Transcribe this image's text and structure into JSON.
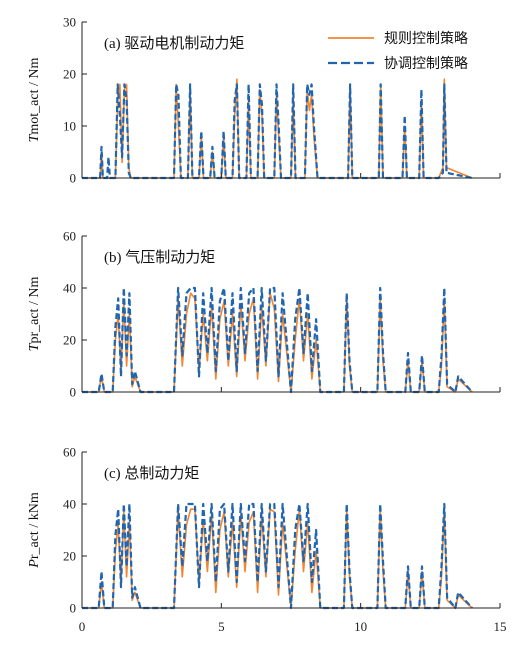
{
  "chart_data": [
    {
      "type": "line",
      "title": "(a) 驱动电机制动力矩",
      "ylabel_italic": "T",
      "ylabel_rest": "mot_act / Nm",
      "ylim": [
        0,
        30
      ],
      "yticks": [
        "0",
        "10",
        "20",
        "30"
      ],
      "xlim": [
        0,
        15
      ],
      "legend": [
        "规则控制策略",
        "协调控制策略"
      ],
      "legend_position": "top-right",
      "series": [
        {
          "name": "规则控制策略",
          "color": "#F28530",
          "style": "solid",
          "x": [
            0.0,
            0.65,
            0.7,
            0.75,
            1.2,
            1.28,
            1.36,
            1.44,
            1.52,
            1.6,
            1.68,
            1.75,
            3.3,
            3.38,
            3.46,
            3.55,
            3.8,
            3.88,
            3.96,
            4.2,
            4.28,
            4.36,
            4.6,
            4.68,
            4.76,
            5.0,
            5.08,
            5.16,
            5.4,
            5.48,
            5.56,
            5.64,
            5.9,
            5.98,
            6.06,
            6.3,
            6.38,
            6.46,
            6.54,
            6.9,
            6.98,
            7.06,
            7.14,
            7.5,
            7.58,
            7.66,
            8.0,
            8.08,
            8.16,
            8.24,
            8.32,
            8.45,
            9.55,
            9.62,
            9.7,
            10.65,
            10.72,
            10.8,
            11.5,
            11.58,
            11.66,
            12.1,
            12.18,
            12.26,
            12.8,
            12.95,
            13.0,
            13.08,
            14.0
          ],
          "y": [
            0,
            0,
            5,
            0,
            0,
            15,
            18,
            3,
            17,
            18,
            2,
            0,
            0,
            18,
            10,
            0,
            0,
            17,
            0,
            0,
            8,
            0,
            0,
            5,
            0,
            0,
            8,
            0,
            0,
            12,
            19,
            0,
            0,
            15,
            0,
            0,
            17,
            12,
            0,
            0,
            16,
            8,
            0,
            0,
            15,
            0,
            0,
            17,
            13,
            16,
            8,
            0,
            0,
            18,
            0,
            0,
            18,
            0,
            0,
            10,
            0,
            0,
            15,
            0,
            0,
            2,
            19,
            2,
            0
          ]
        },
        {
          "name": "协调控制策略",
          "color": "#2065B0",
          "style": "dashed",
          "x": [
            0.0,
            0.65,
            0.7,
            0.75,
            0.9,
            0.95,
            1.0,
            1.2,
            1.28,
            1.36,
            1.44,
            1.52,
            1.6,
            1.68,
            1.75,
            3.3,
            3.38,
            3.46,
            3.55,
            3.8,
            3.88,
            3.96,
            4.2,
            4.28,
            4.36,
            4.6,
            4.68,
            4.76,
            5.0,
            5.08,
            5.16,
            5.4,
            5.48,
            5.56,
            5.64,
            5.9,
            5.98,
            6.06,
            6.3,
            6.38,
            6.46,
            6.54,
            6.9,
            6.98,
            7.06,
            7.14,
            7.5,
            7.58,
            7.66,
            8.0,
            8.08,
            8.16,
            8.24,
            8.32,
            8.45,
            9.55,
            9.62,
            9.7,
            10.65,
            10.72,
            10.8,
            11.5,
            11.58,
            11.66,
            12.1,
            12.18,
            12.26,
            12.8,
            12.95,
            13.0,
            13.08,
            14.0
          ],
          "y": [
            0,
            0,
            6,
            0,
            0,
            4,
            0,
            0,
            18,
            12,
            4,
            18,
            15,
            1,
            0,
            0,
            18,
            16,
            0,
            0,
            18,
            0,
            0,
            9,
            0,
            0,
            6,
            0,
            0,
            9,
            0,
            0,
            15,
            18,
            0,
            0,
            18,
            0,
            0,
            18,
            14,
            0,
            0,
            18,
            10,
            0,
            0,
            18,
            0,
            0,
            18,
            16,
            18,
            10,
            0,
            0,
            18,
            0,
            0,
            18,
            0,
            0,
            12,
            0,
            0,
            17,
            0,
            0,
            1,
            18,
            1,
            0
          ]
        }
      ]
    },
    {
      "type": "line",
      "title": "(b) 气压制动力矩",
      "ylabel_italic": "T",
      "ylabel_rest": "pr_act / Nm",
      "ylim": [
        0,
        60
      ],
      "yticks": [
        "0",
        "20",
        "40",
        "60"
      ],
      "xlim": [
        0,
        15
      ],
      "series": [
        {
          "name": "规则控制策略",
          "color": "#F28530",
          "style": "solid",
          "x": [
            0.0,
            0.6,
            0.7,
            0.8,
            1.1,
            1.2,
            1.3,
            1.4,
            1.5,
            1.6,
            1.7,
            1.8,
            1.9,
            2.1,
            3.3,
            3.45,
            3.6,
            3.75,
            3.9,
            4.05,
            4.2,
            4.35,
            4.5,
            4.65,
            4.8,
            4.95,
            5.1,
            5.25,
            5.4,
            5.55,
            5.7,
            5.85,
            6.0,
            6.15,
            6.3,
            6.45,
            6.6,
            6.75,
            6.9,
            7.05,
            7.2,
            7.5,
            7.65,
            7.8,
            7.95,
            8.1,
            8.25,
            8.4,
            8.55,
            9.4,
            9.5,
            9.6,
            9.7,
            10.6,
            10.7,
            10.8,
            10.9,
            11.6,
            11.7,
            11.8,
            12.1,
            12.2,
            12.3,
            12.8,
            12.9,
            13.0,
            13.1,
            13.4,
            13.5,
            14.0
          ],
          "y": [
            0,
            0,
            6,
            0,
            0,
            20,
            30,
            8,
            35,
            10,
            30,
            2,
            6,
            0,
            0,
            36,
            10,
            30,
            38,
            36,
            8,
            30,
            12,
            33,
            5,
            28,
            35,
            10,
            30,
            6,
            34,
            12,
            30,
            36,
            5,
            33,
            10,
            38,
            32,
            4,
            30,
            0,
            20,
            36,
            12,
            30,
            5,
            20,
            0,
            0,
            36,
            10,
            0,
            0,
            36,
            12,
            0,
            0,
            12,
            0,
            0,
            12,
            0,
            0,
            10,
            36,
            2,
            0,
            5,
            0
          ]
        },
        {
          "name": "协调控制策略",
          "color": "#2065B0",
          "style": "dashed",
          "x": [
            0.0,
            0.6,
            0.7,
            0.8,
            1.1,
            1.2,
            1.3,
            1.4,
            1.5,
            1.6,
            1.7,
            1.8,
            1.9,
            2.1,
            3.3,
            3.45,
            3.6,
            3.75,
            3.9,
            4.05,
            4.2,
            4.35,
            4.5,
            4.65,
            4.8,
            4.95,
            5.1,
            5.25,
            5.4,
            5.55,
            5.7,
            5.85,
            6.0,
            6.15,
            6.3,
            6.45,
            6.6,
            6.75,
            6.9,
            7.05,
            7.2,
            7.5,
            7.65,
            7.8,
            7.95,
            8.1,
            8.25,
            8.4,
            8.55,
            9.4,
            9.5,
            9.6,
            9.7,
            10.6,
            10.7,
            10.8,
            10.9,
            11.6,
            11.7,
            11.8,
            12.1,
            12.2,
            12.3,
            12.8,
            12.9,
            13.0,
            13.1,
            13.4,
            13.5,
            14.0
          ],
          "y": [
            0,
            0,
            7,
            0,
            0,
            25,
            36,
            6,
            40,
            14,
            38,
            3,
            8,
            0,
            0,
            40,
            14,
            38,
            40,
            40,
            6,
            38,
            15,
            40,
            8,
            35,
            40,
            12,
            38,
            8,
            40,
            15,
            38,
            40,
            8,
            40,
            12,
            40,
            40,
            6,
            38,
            0,
            28,
            40,
            15,
            38,
            8,
            28,
            0,
            0,
            38,
            12,
            0,
            0,
            40,
            15,
            0,
            0,
            15,
            0,
            0,
            14,
            0,
            0,
            14,
            40,
            3,
            0,
            6,
            0
          ]
        }
      ]
    },
    {
      "type": "line",
      "title": "(c) 总制动力矩",
      "ylabel_italic": "P",
      "ylabel_rest": "r_act / kNm",
      "ylim": [
        0,
        60
      ],
      "yticks": [
        "0",
        "20",
        "40",
        "60"
      ],
      "xlim": [
        0,
        15
      ],
      "xticks": [
        "0",
        "5",
        "10",
        "15"
      ],
      "series": [
        {
          "name": "规则控制策略",
          "color": "#F28530",
          "style": "solid",
          "x": [
            0.0,
            0.6,
            0.7,
            0.8,
            1.1,
            1.2,
            1.3,
            1.4,
            1.5,
            1.6,
            1.7,
            1.8,
            1.9,
            2.1,
            3.3,
            3.45,
            3.6,
            3.75,
            3.9,
            4.05,
            4.2,
            4.35,
            4.5,
            4.65,
            4.8,
            4.95,
            5.1,
            5.25,
            5.4,
            5.55,
            5.7,
            5.85,
            6.0,
            6.15,
            6.3,
            6.45,
            6.6,
            6.75,
            6.9,
            7.05,
            7.2,
            7.5,
            7.65,
            7.8,
            7.95,
            8.1,
            8.25,
            8.4,
            8.55,
            9.4,
            9.5,
            9.6,
            9.7,
            10.6,
            10.7,
            10.8,
            10.9,
            11.6,
            11.7,
            11.8,
            12.1,
            12.2,
            12.3,
            12.8,
            12.9,
            13.0,
            13.1,
            13.4,
            13.5,
            14.0
          ],
          "y": [
            0,
            0,
            10,
            0,
            0,
            22,
            32,
            10,
            37,
            12,
            33,
            3,
            6,
            0,
            0,
            38,
            12,
            32,
            38,
            38,
            10,
            34,
            14,
            36,
            6,
            30,
            37,
            12,
            33,
            8,
            36,
            14,
            33,
            37,
            6,
            36,
            12,
            38,
            37,
            5,
            33,
            0,
            22,
            38,
            14,
            33,
            6,
            22,
            0,
            0,
            38,
            12,
            0,
            0,
            38,
            14,
            0,
            0,
            14,
            0,
            0,
            14,
            0,
            0,
            12,
            38,
            3,
            0,
            5,
            0
          ]
        },
        {
          "name": "协调控制策略",
          "color": "#2065B0",
          "style": "dashed",
          "x": [
            0.0,
            0.6,
            0.7,
            0.8,
            1.1,
            1.2,
            1.3,
            1.4,
            1.5,
            1.6,
            1.7,
            1.8,
            1.9,
            2.1,
            3.3,
            3.45,
            3.6,
            3.75,
            3.9,
            4.05,
            4.2,
            4.35,
            4.5,
            4.65,
            4.8,
            4.95,
            5.1,
            5.25,
            5.4,
            5.55,
            5.7,
            5.85,
            6.0,
            6.15,
            6.3,
            6.45,
            6.6,
            6.75,
            6.9,
            7.05,
            7.2,
            7.5,
            7.65,
            7.8,
            7.95,
            8.1,
            8.25,
            8.4,
            8.55,
            9.4,
            9.5,
            9.6,
            9.7,
            10.6,
            10.7,
            10.8,
            10.9,
            11.6,
            11.7,
            11.8,
            12.1,
            12.2,
            12.3,
            12.8,
            12.9,
            13.0,
            13.1,
            13.4,
            13.5,
            14.0
          ],
          "y": [
            0,
            0,
            14,
            0,
            0,
            28,
            38,
            8,
            40,
            16,
            40,
            4,
            8,
            0,
            0,
            40,
            16,
            40,
            40,
            40,
            8,
            40,
            18,
            40,
            10,
            38,
            40,
            14,
            40,
            10,
            40,
            18,
            40,
            40,
            10,
            40,
            14,
            40,
            40,
            8,
            40,
            0,
            30,
            40,
            18,
            40,
            10,
            30,
            0,
            0,
            40,
            14,
            0,
            0,
            40,
            18,
            0,
            0,
            16,
            0,
            0,
            16,
            0,
            0,
            16,
            40,
            4,
            0,
            6,
            0
          ]
        }
      ]
    }
  ]
}
